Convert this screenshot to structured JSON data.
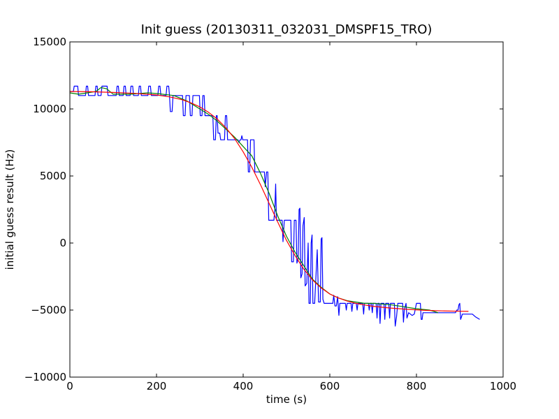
{
  "chart_data": {
    "type": "line",
    "title": "Init guess (20130311_032031_DMSPF15_TRO)",
    "xlabel": "time (s)",
    "ylabel": "initial guess result (Hz)",
    "xlim": [
      0,
      1000
    ],
    "ylim": [
      -10000,
      15000
    ],
    "x_ticks": [
      0,
      200,
      400,
      600,
      800,
      1000
    ],
    "y_ticks": [
      -10000,
      -5000,
      0,
      5000,
      10000,
      15000
    ],
    "grid": false,
    "legend": "none",
    "series": [
      {
        "color": "#0000ff",
        "points": [
          [
            0,
            11300
          ],
          [
            8,
            11300
          ],
          [
            10,
            11700
          ],
          [
            18,
            11700
          ],
          [
            20,
            11000
          ],
          [
            36,
            11000
          ],
          [
            38,
            11700
          ],
          [
            41,
            11700
          ],
          [
            43,
            11000
          ],
          [
            58,
            11000
          ],
          [
            60,
            11700
          ],
          [
            63,
            11700
          ],
          [
            65,
            11000
          ],
          [
            72,
            11000
          ],
          [
            74,
            11700
          ],
          [
            86,
            11700
          ],
          [
            88,
            11000
          ],
          [
            107,
            11000
          ],
          [
            109,
            11700
          ],
          [
            112,
            11700
          ],
          [
            114,
            11000
          ],
          [
            123,
            11000
          ],
          [
            125,
            11700
          ],
          [
            128,
            11700
          ],
          [
            130,
            11000
          ],
          [
            139,
            11000
          ],
          [
            141,
            11700
          ],
          [
            145,
            11700
          ],
          [
            147,
            11000
          ],
          [
            158,
            11000
          ],
          [
            160,
            11700
          ],
          [
            163,
            11700
          ],
          [
            165,
            11000
          ],
          [
            180,
            11000
          ],
          [
            182,
            11700
          ],
          [
            186,
            11700
          ],
          [
            188,
            11000
          ],
          [
            203,
            11000
          ],
          [
            205,
            11700
          ],
          [
            208,
            11700
          ],
          [
            210,
            11000
          ],
          [
            222,
            11000
          ],
          [
            224,
            11700
          ],
          [
            228,
            11700
          ],
          [
            230,
            11000
          ],
          [
            232,
            9800
          ],
          [
            236,
            9800
          ],
          [
            238,
            11000
          ],
          [
            260,
            11000
          ],
          [
            262,
            9500
          ],
          [
            266,
            9500
          ],
          [
            268,
            11000
          ],
          [
            276,
            11000
          ],
          [
            278,
            9500
          ],
          [
            282,
            9500
          ],
          [
            284,
            11000
          ],
          [
            299,
            11000
          ],
          [
            301,
            9500
          ],
          [
            305,
            9500
          ],
          [
            307,
            11000
          ],
          [
            310,
            11000
          ],
          [
            312,
            9500
          ],
          [
            330,
            9500
          ],
          [
            332,
            7700
          ],
          [
            336,
            7700
          ],
          [
            338,
            9500
          ],
          [
            340,
            9500
          ],
          [
            342,
            8200
          ],
          [
            346,
            8200
          ],
          [
            348,
            7700
          ],
          [
            357,
            7700
          ],
          [
            359,
            9500
          ],
          [
            362,
            9500
          ],
          [
            364,
            7700
          ],
          [
            388,
            7700
          ],
          [
            390,
            7500
          ],
          [
            393,
            7700
          ],
          [
            395,
            7700
          ],
          [
            397,
            8000
          ],
          [
            399,
            7700
          ],
          [
            410,
            7700
          ],
          [
            412,
            5300
          ],
          [
            415,
            5300
          ],
          [
            417,
            7700
          ],
          [
            425,
            7700
          ],
          [
            427,
            5300
          ],
          [
            449,
            5300
          ],
          [
            451,
            4200
          ],
          [
            454,
            5300
          ],
          [
            457,
            5300
          ],
          [
            459,
            1700
          ],
          [
            471,
            1700
          ],
          [
            473,
            2500
          ],
          [
            475,
            4400
          ],
          [
            477,
            1700
          ],
          [
            490,
            1700
          ],
          [
            492,
            100
          ],
          [
            495,
            1700
          ],
          [
            510,
            1700
          ],
          [
            512,
            -1400
          ],
          [
            516,
            -1400
          ],
          [
            518,
            1700
          ],
          [
            522,
            1700
          ],
          [
            524,
            -1500
          ],
          [
            527,
            -1200
          ],
          [
            529,
            2500
          ],
          [
            531,
            2600
          ],
          [
            533,
            -2600
          ],
          [
            536,
            -2300
          ],
          [
            538,
            1300
          ],
          [
            541,
            1900
          ],
          [
            543,
            -3200
          ],
          [
            547,
            -3000
          ],
          [
            550,
            0
          ],
          [
            552,
            -4500
          ],
          [
            555,
            -4500
          ],
          [
            557,
            0
          ],
          [
            559,
            600
          ],
          [
            561,
            -4500
          ],
          [
            565,
            -4500
          ],
          [
            571,
            -500
          ],
          [
            574,
            -4400
          ],
          [
            578,
            -4400
          ],
          [
            580,
            300
          ],
          [
            582,
            400
          ],
          [
            584,
            -4200
          ],
          [
            587,
            -4500
          ],
          [
            607,
            -4500
          ],
          [
            609,
            -3900
          ],
          [
            612,
            -4700
          ],
          [
            615,
            -4700
          ],
          [
            618,
            -4000
          ],
          [
            619,
            -4500
          ],
          [
            621,
            -5400
          ],
          [
            623,
            -4500
          ],
          [
            636,
            -4500
          ],
          [
            638,
            -5000
          ],
          [
            640,
            -4500
          ],
          [
            649,
            -4500
          ],
          [
            651,
            -5100
          ],
          [
            653,
            -4500
          ],
          [
            661,
            -4500
          ],
          [
            663,
            -5000
          ],
          [
            665,
            -4500
          ],
          [
            676,
            -4500
          ],
          [
            678,
            -5300
          ],
          [
            680,
            -4500
          ],
          [
            689,
            -4500
          ],
          [
            691,
            -5000
          ],
          [
            693,
            -4500
          ],
          [
            696,
            -4500
          ],
          [
            698,
            -5200
          ],
          [
            700,
            -4500
          ],
          [
            707,
            -4500
          ],
          [
            709,
            -5600
          ],
          [
            711,
            -4500
          ],
          [
            714,
            -4500
          ],
          [
            716,
            -6000
          ],
          [
            718,
            -4500
          ],
          [
            725,
            -4500
          ],
          [
            727,
            -5700
          ],
          [
            729,
            -4500
          ],
          [
            736,
            -4500
          ],
          [
            738,
            -5600
          ],
          [
            740,
            -4500
          ],
          [
            749,
            -4500
          ],
          [
            751,
            -6200
          ],
          [
            754,
            -5500
          ],
          [
            757,
            -4500
          ],
          [
            768,
            -4500
          ],
          [
            770,
            -5900
          ],
          [
            772,
            -5000
          ],
          [
            776,
            -4500
          ],
          [
            778,
            -5600
          ],
          [
            782,
            -5200
          ],
          [
            790,
            -5400
          ],
          [
            795,
            -5300
          ],
          [
            800,
            -4500
          ],
          [
            809,
            -4500
          ],
          [
            811,
            -5700
          ],
          [
            813,
            -5700
          ],
          [
            815,
            -5200
          ],
          [
            836,
            -5200
          ],
          [
            848,
            -5200
          ],
          [
            890,
            -5200
          ],
          [
            893,
            -5000
          ],
          [
            896,
            -5000
          ],
          [
            898,
            -4600
          ],
          [
            900,
            -4500
          ],
          [
            902,
            -5700
          ],
          [
            904,
            -5500
          ],
          [
            906,
            -5300
          ],
          [
            918,
            -5300
          ],
          [
            929,
            -5300
          ],
          [
            936,
            -5500
          ],
          [
            946,
            -5700
          ]
        ]
      },
      {
        "color": "#008000",
        "points": [
          [
            0,
            11200
          ],
          [
            20,
            11100
          ],
          [
            40,
            11200
          ],
          [
            60,
            11300
          ],
          [
            72,
            11600
          ],
          [
            85,
            11500
          ],
          [
            100,
            11100
          ],
          [
            140,
            11100
          ],
          [
            180,
            11200
          ],
          [
            200,
            11150
          ],
          [
            240,
            11000
          ],
          [
            270,
            10600
          ],
          [
            300,
            10000
          ],
          [
            320,
            9600
          ],
          [
            340,
            9100
          ],
          [
            360,
            8500
          ],
          [
            380,
            7900
          ],
          [
            400,
            7200
          ],
          [
            420,
            6500
          ],
          [
            440,
            5200
          ],
          [
            460,
            3700
          ],
          [
            480,
            2000
          ],
          [
            500,
            500
          ],
          [
            520,
            -700
          ],
          [
            540,
            -1700
          ],
          [
            560,
            -2700
          ],
          [
            580,
            -3300
          ],
          [
            600,
            -3800
          ],
          [
            620,
            -4100
          ],
          [
            640,
            -4300
          ],
          [
            660,
            -4400
          ],
          [
            680,
            -4500
          ],
          [
            700,
            -4500
          ],
          [
            740,
            -4600
          ],
          [
            780,
            -4800
          ],
          [
            800,
            -4900
          ],
          [
            830,
            -5000
          ],
          [
            850,
            -5200
          ]
        ]
      },
      {
        "color": "#ff0000",
        "points": [
          [
            0,
            11300
          ],
          [
            50,
            11280
          ],
          [
            100,
            11230
          ],
          [
            150,
            11160
          ],
          [
            200,
            11040
          ],
          [
            230,
            10900
          ],
          [
            260,
            10680
          ],
          [
            280,
            10450
          ],
          [
            300,
            10150
          ],
          [
            320,
            9750
          ],
          [
            340,
            9250
          ],
          [
            360,
            8600
          ],
          [
            380,
            7800
          ],
          [
            400,
            6800
          ],
          [
            420,
            5650
          ],
          [
            440,
            4350
          ],
          [
            460,
            2950
          ],
          [
            480,
            1550
          ],
          [
            500,
            200
          ],
          [
            520,
            -950
          ],
          [
            540,
            -1950
          ],
          [
            560,
            -2750
          ],
          [
            580,
            -3350
          ],
          [
            600,
            -3800
          ],
          [
            620,
            -4100
          ],
          [
            640,
            -4330
          ],
          [
            660,
            -4500
          ],
          [
            680,
            -4620
          ],
          [
            700,
            -4720
          ],
          [
            740,
            -4850
          ],
          [
            780,
            -4950
          ],
          [
            820,
            -5020
          ],
          [
            860,
            -5060
          ],
          [
            900,
            -5090
          ],
          [
            920,
            -5100
          ]
        ]
      }
    ]
  }
}
